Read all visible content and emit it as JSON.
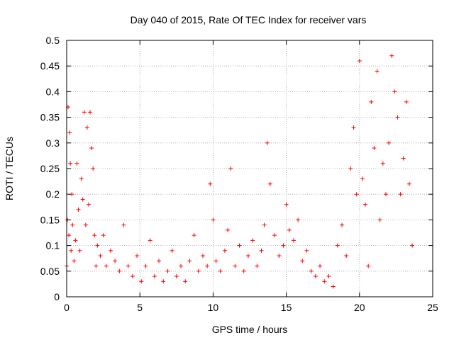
{
  "chart_data": {
    "type": "scatter",
    "title": "Day 040 of 2015, Rate Of TEC Index for receiver vars",
    "xlabel": "GPS time / hours",
    "ylabel": "ROTI / TECUs",
    "xlim": [
      0,
      25
    ],
    "ylim": [
      0,
      0.5
    ],
    "xticks": [
      0,
      5,
      10,
      15,
      20,
      25
    ],
    "xtick_labels": [
      "0",
      "5",
      "10",
      "15",
      "20",
      "25"
    ],
    "yticks": [
      0,
      0.05,
      0.1,
      0.15,
      0.2,
      0.25,
      0.3,
      0.35,
      0.4,
      0.45,
      0.5
    ],
    "ytick_labels": [
      "0",
      "0.05",
      "0.1",
      "0.15",
      "0.2",
      "0.25",
      "0.3",
      "0.35",
      "0.4",
      "0.45",
      "0.5"
    ],
    "grid": true,
    "marker": "+",
    "color": "#ff0000",
    "series": [
      {
        "name": "ROTI",
        "x": [
          0.0,
          0.05,
          0.1,
          0.15,
          0.2,
          0.25,
          0.3,
          0.35,
          0.4,
          0.5,
          0.6,
          0.7,
          0.8,
          0.9,
          1.0,
          1.1,
          1.2,
          1.3,
          1.4,
          1.5,
          1.6,
          1.7,
          1.8,
          1.9,
          2.0,
          2.1,
          2.3,
          2.5,
          2.7,
          3.0,
          3.3,
          3.6,
          3.9,
          4.2,
          4.5,
          4.8,
          5.1,
          5.4,
          5.7,
          6.0,
          6.3,
          6.6,
          6.9,
          7.2,
          7.5,
          7.8,
          8.1,
          8.4,
          8.7,
          9.0,
          9.3,
          9.6,
          9.8,
          10.0,
          10.2,
          10.5,
          10.8,
          11.0,
          11.2,
          11.5,
          11.8,
          12.1,
          12.4,
          12.7,
          13.0,
          13.3,
          13.5,
          13.7,
          13.9,
          14.2,
          14.5,
          14.8,
          15.0,
          15.2,
          15.5,
          15.8,
          16.1,
          16.4,
          16.7,
          17.0,
          17.3,
          17.6,
          17.9,
          18.2,
          18.5,
          18.8,
          19.1,
          19.4,
          19.6,
          19.8,
          20.0,
          20.2,
          20.4,
          20.6,
          20.8,
          21.0,
          21.2,
          21.4,
          21.6,
          21.8,
          22.0,
          22.2,
          22.4,
          22.6,
          22.8,
          23.0,
          23.2,
          23.4,
          23.6
        ],
        "y": [
          0.06,
          0.15,
          0.37,
          0.12,
          0.32,
          0.26,
          0.09,
          0.2,
          0.14,
          0.07,
          0.11,
          0.26,
          0.17,
          0.09,
          0.23,
          0.19,
          0.36,
          0.14,
          0.33,
          0.18,
          0.36,
          0.29,
          0.25,
          0.12,
          0.06,
          0.1,
          0.08,
          0.12,
          0.06,
          0.09,
          0.07,
          0.05,
          0.14,
          0.06,
          0.04,
          0.08,
          0.03,
          0.06,
          0.11,
          0.04,
          0.07,
          0.03,
          0.05,
          0.09,
          0.04,
          0.06,
          0.03,
          0.07,
          0.12,
          0.05,
          0.08,
          0.06,
          0.22,
          0.15,
          0.07,
          0.05,
          0.09,
          0.13,
          0.25,
          0.06,
          0.1,
          0.05,
          0.08,
          0.11,
          0.06,
          0.09,
          0.14,
          0.3,
          0.22,
          0.12,
          0.08,
          0.1,
          0.18,
          0.13,
          0.11,
          0.15,
          0.07,
          0.09,
          0.05,
          0.04,
          0.06,
          0.03,
          0.04,
          0.02,
          0.1,
          0.14,
          0.08,
          0.25,
          0.33,
          0.2,
          0.46,
          0.23,
          0.18,
          0.06,
          0.38,
          0.29,
          0.44,
          0.15,
          0.26,
          0.2,
          0.3,
          0.47,
          0.4,
          0.35,
          0.2,
          0.27,
          0.38,
          0.22,
          0.1
        ]
      }
    ]
  }
}
